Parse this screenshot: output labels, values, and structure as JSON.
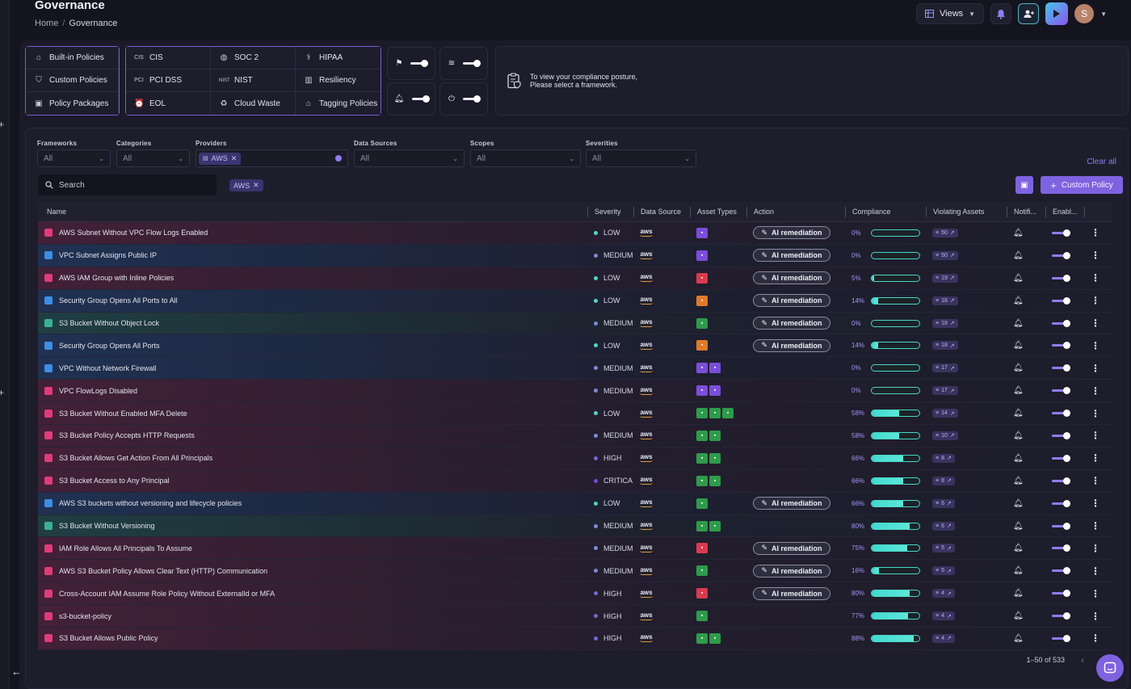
{
  "header": {
    "title": "Governance",
    "breadcrumb": [
      "Home",
      "Governance"
    ],
    "views_label": "Views",
    "avatar_initial": "S"
  },
  "policy_groups": {
    "primary": [
      {
        "label": "Built-in Policies",
        "icon": "home-icon"
      },
      {
        "label": "Custom Policies",
        "icon": "shield-icon"
      },
      {
        "label": "Policy Packages",
        "icon": "package-icon"
      }
    ],
    "frameworks": [
      {
        "label": "CIS",
        "icon": "cis-icon"
      },
      {
        "label": "SOC 2",
        "icon": "soc-icon"
      },
      {
        "label": "HIPAA",
        "icon": "caduceus-icon"
      },
      {
        "label": "PCI DSS",
        "icon": "pci-icon"
      },
      {
        "label": "NIST",
        "icon": "nist-icon"
      },
      {
        "label": "Resiliency",
        "icon": "building-icon"
      },
      {
        "label": "EOL",
        "icon": "alarm-clock-icon"
      },
      {
        "label": "Cloud Waste",
        "icon": "recycle-icon"
      },
      {
        "label": "Tagging Policies",
        "icon": "tag-icon"
      }
    ]
  },
  "posture_message": [
    "To view your compliance posture,",
    "Please select a framework."
  ],
  "filters": {
    "frameworks": {
      "label": "Frameworks",
      "value": "All"
    },
    "categories": {
      "label": "Categories",
      "value": "All"
    },
    "providers": {
      "label": "Providers",
      "chip": "AWS"
    },
    "data_sources": {
      "label": "Data Sources",
      "value": "All"
    },
    "scopes": {
      "label": "Scopes",
      "value": "All"
    },
    "severities": {
      "label": "Severities",
      "value": "All"
    },
    "clear_all": "Clear all"
  },
  "search": {
    "placeholder": "Search"
  },
  "active_chip": "AWS",
  "custom_policy_label": "Custom Policy",
  "columns": [
    "Name",
    "Severity",
    "Data Source",
    "Asset Types",
    "Action",
    "Compliance",
    "Violating Assets",
    "Notifi...",
    "Enabl..."
  ],
  "action_label": "AI remediation",
  "colors": {
    "accent": "#7e63e0",
    "low": "#4dd7c8",
    "medium": "#7d8bd8",
    "high": "#6f6bd6",
    "critical": "#7a4ad8",
    "asset_purple": "#7b4ddb",
    "asset_red": "#d93a4f",
    "asset_orange": "#e07a2a",
    "asset_green": "#2e9b4a"
  },
  "rows": [
    {
      "name": "AWS Subnet Without VPC Flow Logs Enabled",
      "severity": "LOW",
      "tint": "pink",
      "icon": "pink",
      "assets": [
        "purple"
      ],
      "action": true,
      "compliance": 0,
      "compliance_label": "0%",
      "violating": "50"
    },
    {
      "name": "VPC Subnet Assigns Public IP",
      "severity": "MEDIUM",
      "tint": "blue",
      "icon": "blue",
      "assets": [
        "purple"
      ],
      "action": true,
      "compliance": 0,
      "compliance_label": "0%",
      "violating": "50"
    },
    {
      "name": "AWS IAM Group with Inline Policies",
      "severity": "LOW",
      "tint": "pink",
      "icon": "pink",
      "assets": [
        "red"
      ],
      "action": true,
      "compliance": 5,
      "compliance_label": "5%",
      "violating": "19"
    },
    {
      "name": "Security Group Opens All Ports to All",
      "severity": "LOW",
      "tint": "blue",
      "icon": "blue",
      "assets": [
        "orange"
      ],
      "action": true,
      "compliance": 14,
      "compliance_label": "14%",
      "violating": "18"
    },
    {
      "name": "S3 Bucket Without Object Lock",
      "severity": "MEDIUM",
      "tint": "teal",
      "icon": "teal",
      "assets": [
        "green"
      ],
      "action": true,
      "compliance": 0,
      "compliance_label": "0%",
      "violating": "18"
    },
    {
      "name": "Security Group Opens All Ports",
      "severity": "LOW",
      "tint": "blue",
      "icon": "blue",
      "assets": [
        "orange"
      ],
      "action": true,
      "compliance": 14,
      "compliance_label": "14%",
      "violating": "18"
    },
    {
      "name": "VPC Without Network Firewall",
      "severity": "MEDIUM",
      "tint": "blue",
      "icon": "blue",
      "assets": [
        "purple",
        "purple"
      ],
      "action": false,
      "compliance": 0,
      "compliance_label": "0%",
      "violating": "17"
    },
    {
      "name": "VPC FlowLogs Disabled",
      "severity": "MEDIUM",
      "tint": "pink",
      "icon": "pink",
      "assets": [
        "purple",
        "purple"
      ],
      "action": false,
      "compliance": 0,
      "compliance_label": "0%",
      "violating": "17"
    },
    {
      "name": "S3 Bucket Without Enabled MFA Delete",
      "severity": "LOW",
      "tint": "pink",
      "icon": "pink",
      "assets": [
        "green",
        "green",
        "green"
      ],
      "action": false,
      "compliance": 58,
      "compliance_label": "58%",
      "violating": "14"
    },
    {
      "name": "S3 Bucket Policy Accepts HTTP Requests",
      "severity": "MEDIUM",
      "tint": "pink",
      "icon": "pink",
      "assets": [
        "green",
        "green"
      ],
      "action": false,
      "compliance": 58,
      "compliance_label": "58%",
      "violating": "10"
    },
    {
      "name": "S3 Bucket Allows Get Action From All Principals",
      "severity": "HIGH",
      "tint": "pink",
      "icon": "pink",
      "assets": [
        "green",
        "green"
      ],
      "action": false,
      "compliance": 66,
      "compliance_label": "66%",
      "violating": "8"
    },
    {
      "name": "S3 Bucket Access to Any Principal",
      "severity": "CRITICA",
      "tint": "pink",
      "icon": "pink",
      "assets": [
        "green",
        "green"
      ],
      "action": false,
      "compliance": 66,
      "compliance_label": "66%",
      "violating": "8"
    },
    {
      "name": "AWS S3 buckets without versioning and lifecycle policies",
      "severity": "LOW",
      "tint": "blue",
      "icon": "blue",
      "assets": [
        "green"
      ],
      "action": true,
      "compliance": 66,
      "compliance_label": "66%",
      "violating": "6"
    },
    {
      "name": "S3 Bucket Without Versioning",
      "severity": "MEDIUM",
      "tint": "teal",
      "icon": "teal",
      "assets": [
        "green",
        "green"
      ],
      "action": false,
      "compliance": 80,
      "compliance_label": "80%",
      "violating": "6"
    },
    {
      "name": "IAM Role Allows All Principals To Assume",
      "severity": "MEDIUM",
      "tint": "pink",
      "icon": "pink",
      "assets": [
        "red"
      ],
      "action": true,
      "compliance": 75,
      "compliance_label": "75%",
      "violating": "5"
    },
    {
      "name": "AWS S3 Bucket Policy Allows Clear Text (HTTP) Communication",
      "severity": "MEDIUM",
      "tint": "pink",
      "icon": "pink",
      "assets": [
        "green"
      ],
      "action": true,
      "compliance": 16,
      "compliance_label": "16%",
      "violating": "5"
    },
    {
      "name": "Cross-Account IAM Assume Role Policy Without ExternalId or MFA",
      "severity": "HIGH",
      "tint": "pink",
      "icon": "pink",
      "assets": [
        "red"
      ],
      "action": true,
      "compliance": 80,
      "compliance_label": "80%",
      "violating": "4"
    },
    {
      "name": "s3-bucket-policy",
      "severity": "HIGH",
      "tint": "pink",
      "icon": "pink",
      "assets": [
        "green"
      ],
      "action": false,
      "compliance": 77,
      "compliance_label": "77%",
      "violating": "4"
    },
    {
      "name": "S3 Bucket Allows Public Policy",
      "severity": "HIGH",
      "tint": "pink",
      "icon": "pink",
      "assets": [
        "green",
        "green"
      ],
      "action": false,
      "compliance": 88,
      "compliance_label": "88%",
      "violating": "4"
    }
  ],
  "pagination": {
    "range": "1–50 of 533"
  }
}
